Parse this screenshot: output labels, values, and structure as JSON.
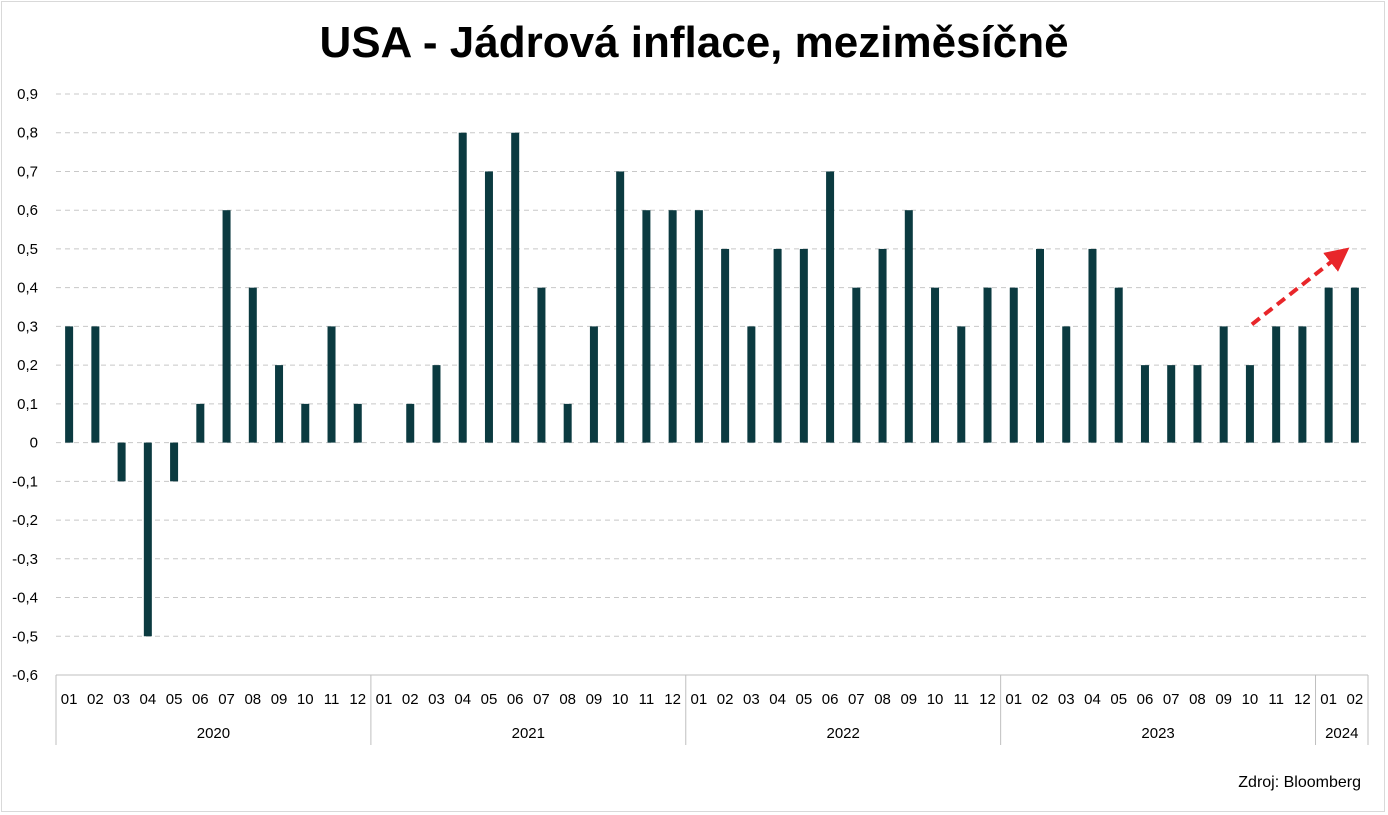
{
  "chart_data": {
    "type": "bar",
    "title": "USA - Jádrová inflace, meziměsíčně",
    "source": "Zdroj: Bloomberg",
    "ylim": [
      -0.6,
      0.9
    ],
    "yticks": [
      "0,9",
      "0,8",
      "0,7",
      "0,6",
      "0,5",
      "0,4",
      "0,3",
      "0,2",
      "0,1",
      "0",
      "-0,1",
      "-0,2",
      "-0,3",
      "-0,4",
      "-0,5",
      "-0,6"
    ],
    "ytick_values": [
      0.9,
      0.8,
      0.7,
      0.6,
      0.5,
      0.4,
      0.3,
      0.2,
      0.1,
      0,
      -0.1,
      -0.2,
      -0.3,
      -0.4,
      -0.5,
      -0.6
    ],
    "grid": "horizontal dashed",
    "bar_color": "#0b3a40",
    "arrow_color": "#e8262a",
    "years": [
      {
        "label": "2020",
        "months": [
          "01",
          "02",
          "03",
          "04",
          "05",
          "06",
          "07",
          "08",
          "09",
          "10",
          "11",
          "12"
        ],
        "values": [
          0.3,
          0.3,
          -0.1,
          -0.5,
          -0.1,
          0.1,
          0.6,
          0.4,
          0.2,
          0.1,
          0.3,
          0.1
        ]
      },
      {
        "label": "2021",
        "months": [
          "01",
          "02",
          "03",
          "04",
          "05",
          "06",
          "07",
          "08",
          "09",
          "10",
          "11",
          "12"
        ],
        "values": [
          0.0,
          0.1,
          0.2,
          0.8,
          0.7,
          0.8,
          0.4,
          0.1,
          0.3,
          0.7,
          0.6,
          0.6
        ]
      },
      {
        "label": "2022",
        "months": [
          "01",
          "02",
          "03",
          "04",
          "05",
          "06",
          "07",
          "08",
          "09",
          "10",
          "11",
          "12"
        ],
        "values": [
          0.6,
          0.5,
          0.3,
          0.5,
          0.5,
          0.7,
          0.4,
          0.5,
          0.6,
          0.4,
          0.3,
          0.4
        ]
      },
      {
        "label": "2023",
        "months": [
          "01",
          "02",
          "03",
          "04",
          "05",
          "06",
          "07",
          "08",
          "09",
          "10",
          "11",
          "12"
        ],
        "values": [
          0.4,
          0.5,
          0.3,
          0.5,
          0.4,
          0.2,
          0.2,
          0.2,
          0.3,
          0.2,
          0.3,
          0.3
        ]
      },
      {
        "label": "2024",
        "months": [
          "01",
          "02"
        ],
        "values": [
          0.4,
          0.4
        ]
      }
    ]
  }
}
